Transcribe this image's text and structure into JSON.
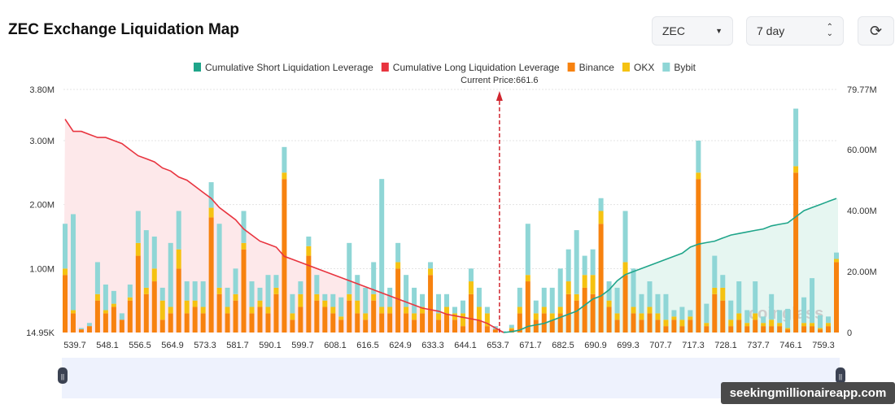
{
  "header": {
    "title": "ZEC Exchange Liquidation Map",
    "coin_select": "ZEC",
    "range_select": "7 day",
    "refresh_icon": "refresh-icon"
  },
  "watermark": "seekingmillionaireapp.com",
  "chart_data": {
    "type": "bar",
    "legend": [
      {
        "name": "Cumulative Short Liquidation Leverage",
        "color": "#1fa58a"
      },
      {
        "name": "Cumulative Long Liquidation Leverage",
        "color": "#e8343f"
      },
      {
        "name": "Binance",
        "color": "#f7820f"
      },
      {
        "name": "OKX",
        "color": "#f5c211"
      },
      {
        "name": "Bybit",
        "color": "#8fd6d6"
      }
    ],
    "legend_position": "top",
    "current_price_label": "Current Price:661.6",
    "x_tick_labels": [
      "539.7",
      "548.1",
      "556.5",
      "564.9",
      "573.3",
      "581.7",
      "590.1",
      "599.7",
      "608.1",
      "616.5",
      "624.9",
      "633.3",
      "644.1",
      "653.7",
      "671.7",
      "682.5",
      "690.9",
      "699.3",
      "707.7",
      "717.3",
      "728.1",
      "737.7",
      "746.1",
      "759.3"
    ],
    "y_left": {
      "ticks": [
        "14.95K",
        "1.00M",
        "2.00M",
        "3.00M",
        "3.80M"
      ],
      "range": [
        0.01495,
        3.8
      ],
      "unit": "M"
    },
    "y_right": {
      "ticks": [
        "0",
        "20.00M",
        "40.00M",
        "60.00M",
        "79.77M"
      ],
      "range": [
        0,
        79.77
      ],
      "unit": "M"
    },
    "bars_binance_okx_bybit": [
      [
        0.9,
        0.1,
        0.7
      ],
      [
        0.3,
        0.05,
        1.5
      ],
      [
        0.05,
        0,
        0.02
      ],
      [
        0.1,
        0,
        0.05
      ],
      [
        0.5,
        0.1,
        0.5
      ],
      [
        0.3,
        0.05,
        0.4
      ],
      [
        0.4,
        0.05,
        0.2
      ],
      [
        0.2,
        0,
        0.1
      ],
      [
        0.5,
        0.05,
        0.2
      ],
      [
        1.2,
        0.2,
        0.5
      ],
      [
        0.6,
        0.1,
        0.9
      ],
      [
        0.8,
        0.2,
        0.5
      ],
      [
        0.2,
        0.3,
        0.2
      ],
      [
        0.3,
        0.1,
        1.0
      ],
      [
        1.0,
        0.3,
        0.6
      ],
      [
        0.3,
        0.2,
        0.3
      ],
      [
        0.4,
        0.1,
        0.3
      ],
      [
        0.3,
        0.1,
        0.4
      ],
      [
        1.8,
        0.15,
        0.4
      ],
      [
        0.6,
        0.1,
        1.0
      ],
      [
        0.3,
        0.1,
        0.3
      ],
      [
        0.5,
        0.1,
        0.4
      ],
      [
        1.3,
        0.1,
        0.5
      ],
      [
        0.3,
        0.1,
        0.4
      ],
      [
        0.4,
        0.1,
        0.2
      ],
      [
        0.3,
        0.1,
        0.5
      ],
      [
        0.6,
        0.1,
        0.2
      ],
      [
        2.4,
        0.1,
        0.4
      ],
      [
        0.2,
        0.1,
        0.3
      ],
      [
        0.4,
        0.2,
        0.2
      ],
      [
        1.2,
        0.15,
        0.15
      ],
      [
        0.5,
        0.1,
        0.3
      ],
      [
        0.4,
        0.1,
        0.1
      ],
      [
        0.3,
        0.1,
        0.2
      ],
      [
        0.2,
        0.05,
        0.3
      ],
      [
        0.5,
        0.1,
        0.8
      ],
      [
        0.3,
        0.2,
        0.4
      ],
      [
        0.2,
        0.1,
        0.4
      ],
      [
        0.5,
        0.1,
        0.5
      ],
      [
        0.3,
        0.1,
        2.0
      ],
      [
        0.3,
        0.1,
        0.3
      ],
      [
        1.0,
        0.1,
        0.3
      ],
      [
        0.3,
        0.1,
        0.5
      ],
      [
        0.2,
        0.1,
        0.4
      ],
      [
        0.3,
        0.1,
        0.2
      ],
      [
        0.9,
        0.1,
        0.1
      ],
      [
        0.2,
        0.1,
        0.3
      ],
      [
        0.3,
        0.1,
        0.2
      ],
      [
        0.2,
        0.1,
        0.1
      ],
      [
        0.1,
        0.2,
        0.2
      ],
      [
        0.6,
        0.2,
        0.2
      ],
      [
        0.2,
        0.2,
        0.3
      ],
      [
        0.1,
        0.2,
        0.1
      ],
      [
        0.05,
        0,
        0.05
      ],
      [
        0,
        0,
        0.02
      ],
      [
        0.05,
        0.02,
        0.05
      ],
      [
        0.3,
        0.1,
        0.3
      ],
      [
        0.8,
        0.1,
        0.8
      ],
      [
        0.2,
        0.1,
        0.2
      ],
      [
        0.3,
        0.1,
        0.3
      ],
      [
        0.2,
        0.1,
        0.4
      ],
      [
        0.3,
        0.1,
        0.6
      ],
      [
        0.6,
        0.2,
        0.5
      ],
      [
        0.5,
        0.1,
        1.0
      ],
      [
        0.7,
        0.2,
        0.3
      ],
      [
        0.6,
        0.3,
        0.4
      ],
      [
        1.7,
        0.2,
        0.2
      ],
      [
        0.4,
        0.1,
        0.3
      ],
      [
        0.2,
        0.1,
        0.4
      ],
      [
        0.9,
        0.2,
        0.8
      ],
      [
        0.3,
        0.1,
        0.6
      ],
      [
        0.2,
        0.1,
        0.3
      ],
      [
        0.3,
        0.1,
        0.4
      ],
      [
        0.2,
        0.1,
        0.3
      ],
      [
        0.1,
        0.1,
        0.4
      ],
      [
        0.2,
        0.05,
        0.1
      ],
      [
        0.1,
        0.1,
        0.2
      ],
      [
        0.2,
        0.05,
        0.1
      ],
      [
        2.4,
        0.1,
        0.5
      ],
      [
        0.1,
        0.05,
        0.3
      ],
      [
        0.6,
        0.1,
        0.5
      ],
      [
        0.5,
        0.2,
        0.2
      ],
      [
        0.1,
        0.1,
        0.3
      ],
      [
        0.2,
        0.1,
        0.5
      ],
      [
        0.1,
        0.05,
        0.2
      ],
      [
        0.2,
        0.1,
        0.5
      ],
      [
        0.1,
        0.05,
        0.1
      ],
      [
        0.1,
        0.1,
        0.4
      ],
      [
        0.1,
        0.05,
        0.2
      ],
      [
        0.05,
        0.02,
        0.3
      ],
      [
        2.5,
        0.1,
        0.9
      ],
      [
        0.1,
        0.05,
        0.4
      ],
      [
        0.1,
        0.05,
        0.7
      ],
      [
        0.05,
        0.02,
        0.2
      ],
      [
        0.1,
        0.05,
        0.1
      ],
      [
        1.1,
        0.05,
        0.1
      ]
    ],
    "cumulative_long": [
      70,
      66,
      66,
      65,
      64,
      64,
      63,
      62,
      60,
      58,
      57,
      56,
      54,
      53,
      51,
      50,
      48,
      46,
      44,
      41,
      39,
      37,
      34,
      32,
      30,
      29,
      28,
      25,
      24,
      23,
      22,
      21,
      20,
      19,
      18,
      17,
      16,
      15,
      14,
      13,
      12,
      11,
      10,
      9,
      8,
      7.5,
      7,
      6,
      5.5,
      5,
      4.5,
      4,
      3,
      1.5,
      0
    ],
    "cumulative_short": [
      0,
      0.3,
      0.8,
      2,
      2.5,
      3,
      4,
      5,
      6,
      7,
      9,
      11,
      12,
      14,
      17,
      19,
      20,
      21,
      22,
      23,
      24,
      25,
      26,
      28,
      29,
      29.5,
      30,
      31,
      32,
      32.5,
      33,
      33.5,
      34,
      35,
      35.5,
      36,
      38,
      40,
      41,
      42,
      43,
      44
    ],
    "grid": true
  }
}
